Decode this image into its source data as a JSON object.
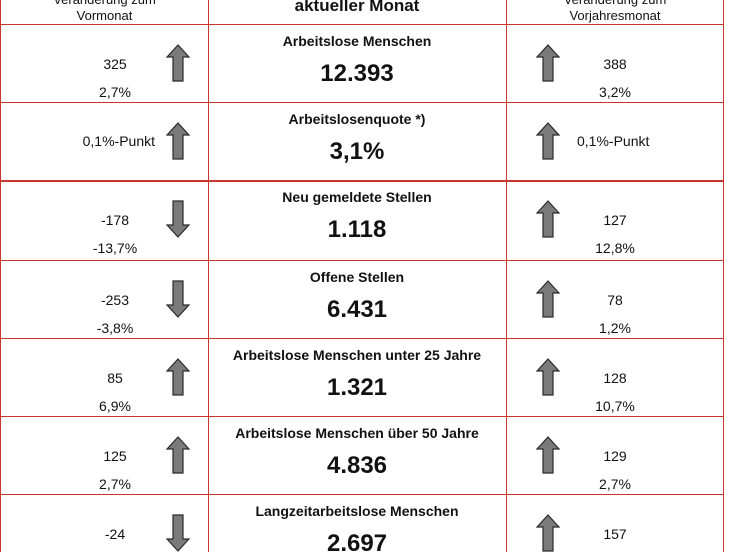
{
  "header": {
    "left_line1": "Veränderung zum",
    "left_line2": "Vormonat",
    "center": "aktueller Monat",
    "right_line1": "Veränderung zum",
    "right_line2": "Vorjahresmonat"
  },
  "rows": [
    {
      "title": "Arbeitslose Menschen",
      "value": "12.393",
      "prev_month_abs": "325",
      "prev_month_pct": "2,7%",
      "prev_month_dir": "up",
      "prev_year_abs": "388",
      "prev_year_pct": "3,2%",
      "prev_year_dir": "up"
    },
    {
      "title": "Arbeitslosenquote *)",
      "value": "3,1%",
      "prev_month_abs": "0,1%-Punkt",
      "prev_month_pct": "",
      "prev_month_dir": "up",
      "prev_year_abs": "0,1%-Punkt",
      "prev_year_pct": "",
      "prev_year_dir": "up"
    },
    {
      "title": "Neu gemeldete Stellen",
      "value": "1.118",
      "prev_month_abs": "-178",
      "prev_month_pct": "-13,7%",
      "prev_month_dir": "down",
      "prev_year_abs": "127",
      "prev_year_pct": "12,8%",
      "prev_year_dir": "up"
    },
    {
      "title": "Offene Stellen",
      "value": "6.431",
      "prev_month_abs": "-253",
      "prev_month_pct": "-3,8%",
      "prev_month_dir": "down",
      "prev_year_abs": "78",
      "prev_year_pct": "1,2%",
      "prev_year_dir": "up"
    },
    {
      "title": "Arbeitslose Menschen unter 25 Jahre",
      "value": "1.321",
      "prev_month_abs": "85",
      "prev_month_pct": "6,9%",
      "prev_month_dir": "up",
      "prev_year_abs": "128",
      "prev_year_pct": "10,7%",
      "prev_year_dir": "up"
    },
    {
      "title": "Arbeitslose Menschen über 50 Jahre",
      "value": "4.836",
      "prev_month_abs": "125",
      "prev_month_pct": "2,7%",
      "prev_month_dir": "up",
      "prev_year_abs": "129",
      "prev_year_pct": "2,7%",
      "prev_year_dir": "up"
    },
    {
      "title": "Langzeitarbeitslose Menschen",
      "value": "2.697",
      "prev_month_abs": "-24",
      "prev_month_pct": "",
      "prev_month_dir": "down",
      "prev_year_abs": "157",
      "prev_year_pct": "",
      "prev_year_dir": "up"
    }
  ],
  "colors": {
    "grid_line": "#c8352f",
    "arrow_fill": "#7a7a7a",
    "arrow_stroke": "#2a2a2a"
  }
}
